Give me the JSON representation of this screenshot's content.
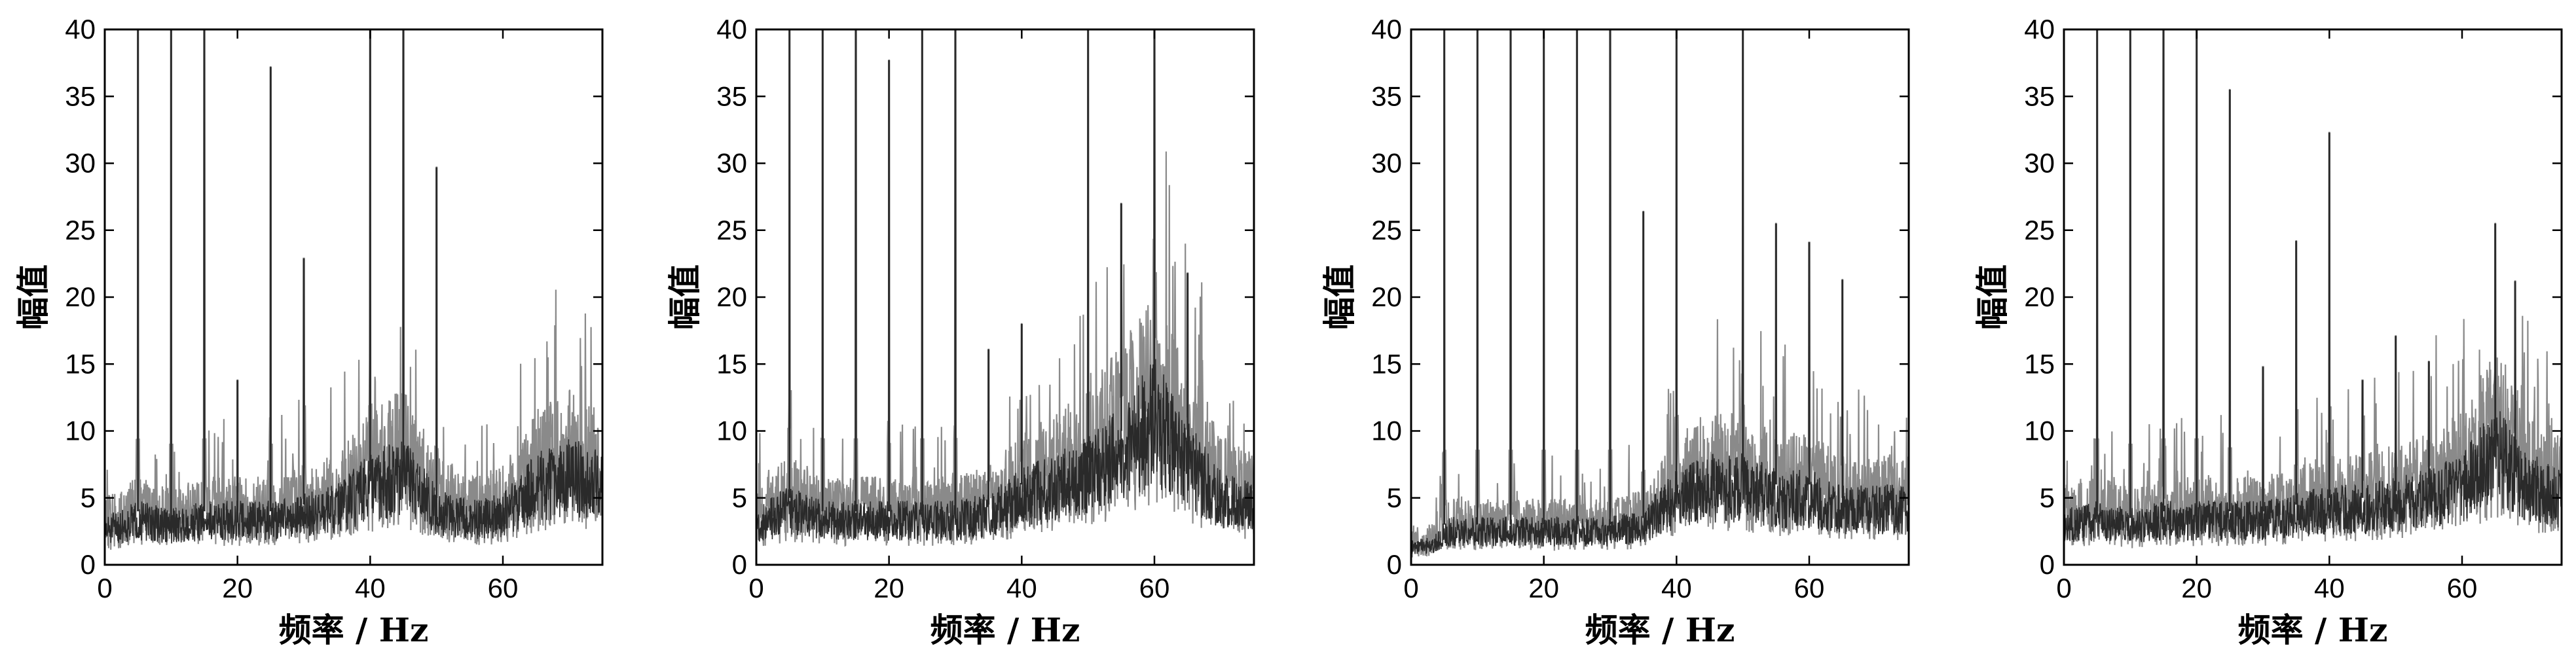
{
  "chart_data": [
    {
      "type": "line",
      "xlabel": "频率 / Hz",
      "ylabel": "幅值",
      "xlim": [
        0,
        75
      ],
      "ylim": [
        0,
        40
      ],
      "xticks": [
        "0",
        "20",
        "40",
        "60"
      ],
      "yticks": [
        "0",
        "5",
        "10",
        "15",
        "20",
        "25",
        "30",
        "35",
        "40"
      ],
      "grid": false,
      "line_color": "#2a2a2a",
      "band_color": "#8a8a8a",
      "series": [
        {
          "x": [
            0,
            5,
            10,
            15,
            20,
            25,
            30,
            35,
            40,
            45,
            50,
            55,
            60,
            65,
            70,
            75
          ],
          "y": [
            3,
            4,
            3.5,
            4,
            4,
            4,
            4.5,
            5,
            7,
            8,
            5,
            4,
            4.5,
            7,
            8,
            7
          ]
        }
      ],
      "peaks": [
        {
          "x": 5,
          "y": 40
        },
        {
          "x": 10,
          "y": 40
        },
        {
          "x": 15,
          "y": 40
        },
        {
          "x": 20,
          "y": 13.8
        },
        {
          "x": 25,
          "y": 37.2
        },
        {
          "x": 30,
          "y": 22.9
        },
        {
          "x": 40,
          "y": 40
        },
        {
          "x": 45,
          "y": 40
        },
        {
          "x": 50,
          "y": 29.7
        }
      ]
    },
    {
      "type": "line",
      "xlabel": "频率 / Hz",
      "ylabel": "幅值",
      "xlim": [
        0,
        75
      ],
      "ylim": [
        0,
        40
      ],
      "xticks": [
        "0",
        "20",
        "40",
        "60"
      ],
      "yticks": [
        "0",
        "5",
        "10",
        "15",
        "20",
        "25",
        "30",
        "35",
        "40"
      ],
      "grid": false,
      "line_color": "#2a2a2a",
      "band_color": "#8a8a8a",
      "series": [
        {
          "x": [
            0,
            5,
            10,
            15,
            20,
            25,
            30,
            35,
            40,
            45,
            50,
            55,
            60,
            65,
            70,
            75
          ],
          "y": [
            3.5,
            5,
            4,
            4,
            4,
            4,
            4,
            4.5,
            6,
            7,
            8,
            10,
            13,
            9,
            6,
            5
          ]
        }
      ],
      "peaks": [
        {
          "x": 5,
          "y": 40
        },
        {
          "x": 10,
          "y": 40
        },
        {
          "x": 15,
          "y": 40
        },
        {
          "x": 20,
          "y": 37.7
        },
        {
          "x": 25,
          "y": 40
        },
        {
          "x": 30,
          "y": 40
        },
        {
          "x": 35,
          "y": 16.1
        },
        {
          "x": 40,
          "y": 18
        },
        {
          "x": 50,
          "y": 40
        },
        {
          "x": 55,
          "y": 27
        },
        {
          "x": 60,
          "y": 40
        },
        {
          "x": 65,
          "y": 21.8
        }
      ]
    },
    {
      "type": "line",
      "xlabel": "频率 / Hz",
      "ylabel": "幅值",
      "xlim": [
        0,
        75
      ],
      "ylim": [
        0,
        40
      ],
      "xticks": [
        "0",
        "20",
        "40",
        "60"
      ],
      "yticks": [
        "0",
        "5",
        "10",
        "15",
        "20",
        "25",
        "30",
        "35",
        "40"
      ],
      "grid": false,
      "line_color": "#2a2a2a",
      "band_color": "#8a8a8a",
      "series": [
        {
          "x": [
            0,
            4,
            5,
            10,
            15,
            20,
            25,
            30,
            35,
            40,
            45,
            50,
            55,
            60,
            65,
            70,
            75
          ],
          "y": [
            1.5,
            2,
            3,
            3,
            3,
            3,
            3,
            3,
            3.5,
            6,
            7,
            7,
            6,
            6,
            5,
            5,
            5
          ]
        }
      ],
      "peaks": [
        {
          "x": 5,
          "y": 40
        },
        {
          "x": 10,
          "y": 40
        },
        {
          "x": 15,
          "y": 40
        },
        {
          "x": 20,
          "y": 40
        },
        {
          "x": 25,
          "y": 40
        },
        {
          "x": 30,
          "y": 40
        },
        {
          "x": 35,
          "y": 26.4
        },
        {
          "x": 40,
          "y": 40
        },
        {
          "x": 50,
          "y": 40
        },
        {
          "x": 55,
          "y": 25.5
        },
        {
          "x": 60,
          "y": 24.1
        },
        {
          "x": 65,
          "y": 21.3
        }
      ]
    },
    {
      "type": "line",
      "xlabel": "频率 / Hz",
      "ylabel": "幅值",
      "xlim": [
        0,
        75
      ],
      "ylim": [
        0,
        40
      ],
      "xticks": [
        "0",
        "20",
        "40",
        "60"
      ],
      "yticks": [
        "0",
        "5",
        "10",
        "15",
        "20",
        "25",
        "30",
        "35",
        "40"
      ],
      "grid": false,
      "line_color": "#2a2a2a",
      "band_color": "#8a8a8a",
      "series": [
        {
          "x": [
            0,
            5,
            10,
            15,
            20,
            25,
            30,
            35,
            40,
            45,
            50,
            55,
            60,
            65,
            70,
            75
          ],
          "y": [
            3.5,
            4,
            3.5,
            4,
            4,
            4,
            4,
            4.5,
            5,
            5,
            5.5,
            6,
            7,
            10,
            7,
            6
          ]
        }
      ],
      "peaks": [
        {
          "x": 5,
          "y": 40
        },
        {
          "x": 10,
          "y": 40
        },
        {
          "x": 15,
          "y": 40
        },
        {
          "x": 20,
          "y": 40
        },
        {
          "x": 25,
          "y": 35.5
        },
        {
          "x": 30,
          "y": 14.8
        },
        {
          "x": 35,
          "y": 24.2
        },
        {
          "x": 40,
          "y": 32.3
        },
        {
          "x": 45,
          "y": 13.8
        },
        {
          "x": 50,
          "y": 17.1
        },
        {
          "x": 55,
          "y": 15.2
        },
        {
          "x": 65,
          "y": 25.5
        },
        {
          "x": 68,
          "y": 21.2
        }
      ]
    }
  ]
}
